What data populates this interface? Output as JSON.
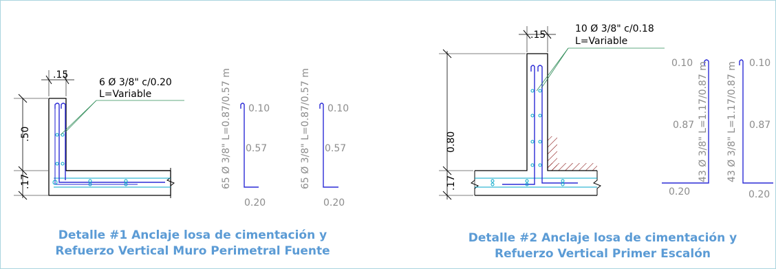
{
  "colors": {
    "caption": "#5b9bd5",
    "rebar": "#2a2ad6",
    "stirrup": "#00a6c8",
    "leader": "#2e8b57",
    "border": "#aad4df",
    "gray_text": "#8c8c8c",
    "soil_hatch": "#8b1a1a"
  },
  "detail1": {
    "caption_line1": "Detalle #1 Anclaje losa de cimentación y",
    "caption_line2": "Refuerzo Vertical Muro Perimetral Fuente",
    "wall_thickness": ".15",
    "callout_line1": "6 Ø 3/8\" c/0.20",
    "callout_line2": "L=Variable",
    "dim_height": ".50",
    "dim_slab": ".17",
    "bar_a": {
      "label": "65 Ø 3/8\" L=0.87/0.57 m",
      "hook": "0.10",
      "height": "0.57",
      "foot": "0.20"
    },
    "bar_b": {
      "label": "65 Ø 3/8\" L=0.87/0.57 m",
      "hook": "0.10",
      "height": "0.57",
      "foot": "0.20"
    }
  },
  "detail2": {
    "caption_line1": "Detalle #2 Anclaje losa de cimentación y",
    "caption_line2": "Refuerzo Vertical Primer Escalón",
    "wall_thickness": ".15",
    "callout_line1": "10 Ø 3/8\" c/0.18",
    "callout_line2": "L=Variable",
    "dim_height": "0.80",
    "dim_slab": ".17",
    "bar_a": {
      "label": "43 Ø 3/8\" L=1.17/0.87 m",
      "hook": "0.10",
      "height": "0.87",
      "foot": "0.20"
    },
    "bar_b": {
      "label": "43 Ø 3/8\" L=1.17/0.87 m",
      "hook": "0.10",
      "height": "0.87",
      "foot": "0.20"
    }
  }
}
